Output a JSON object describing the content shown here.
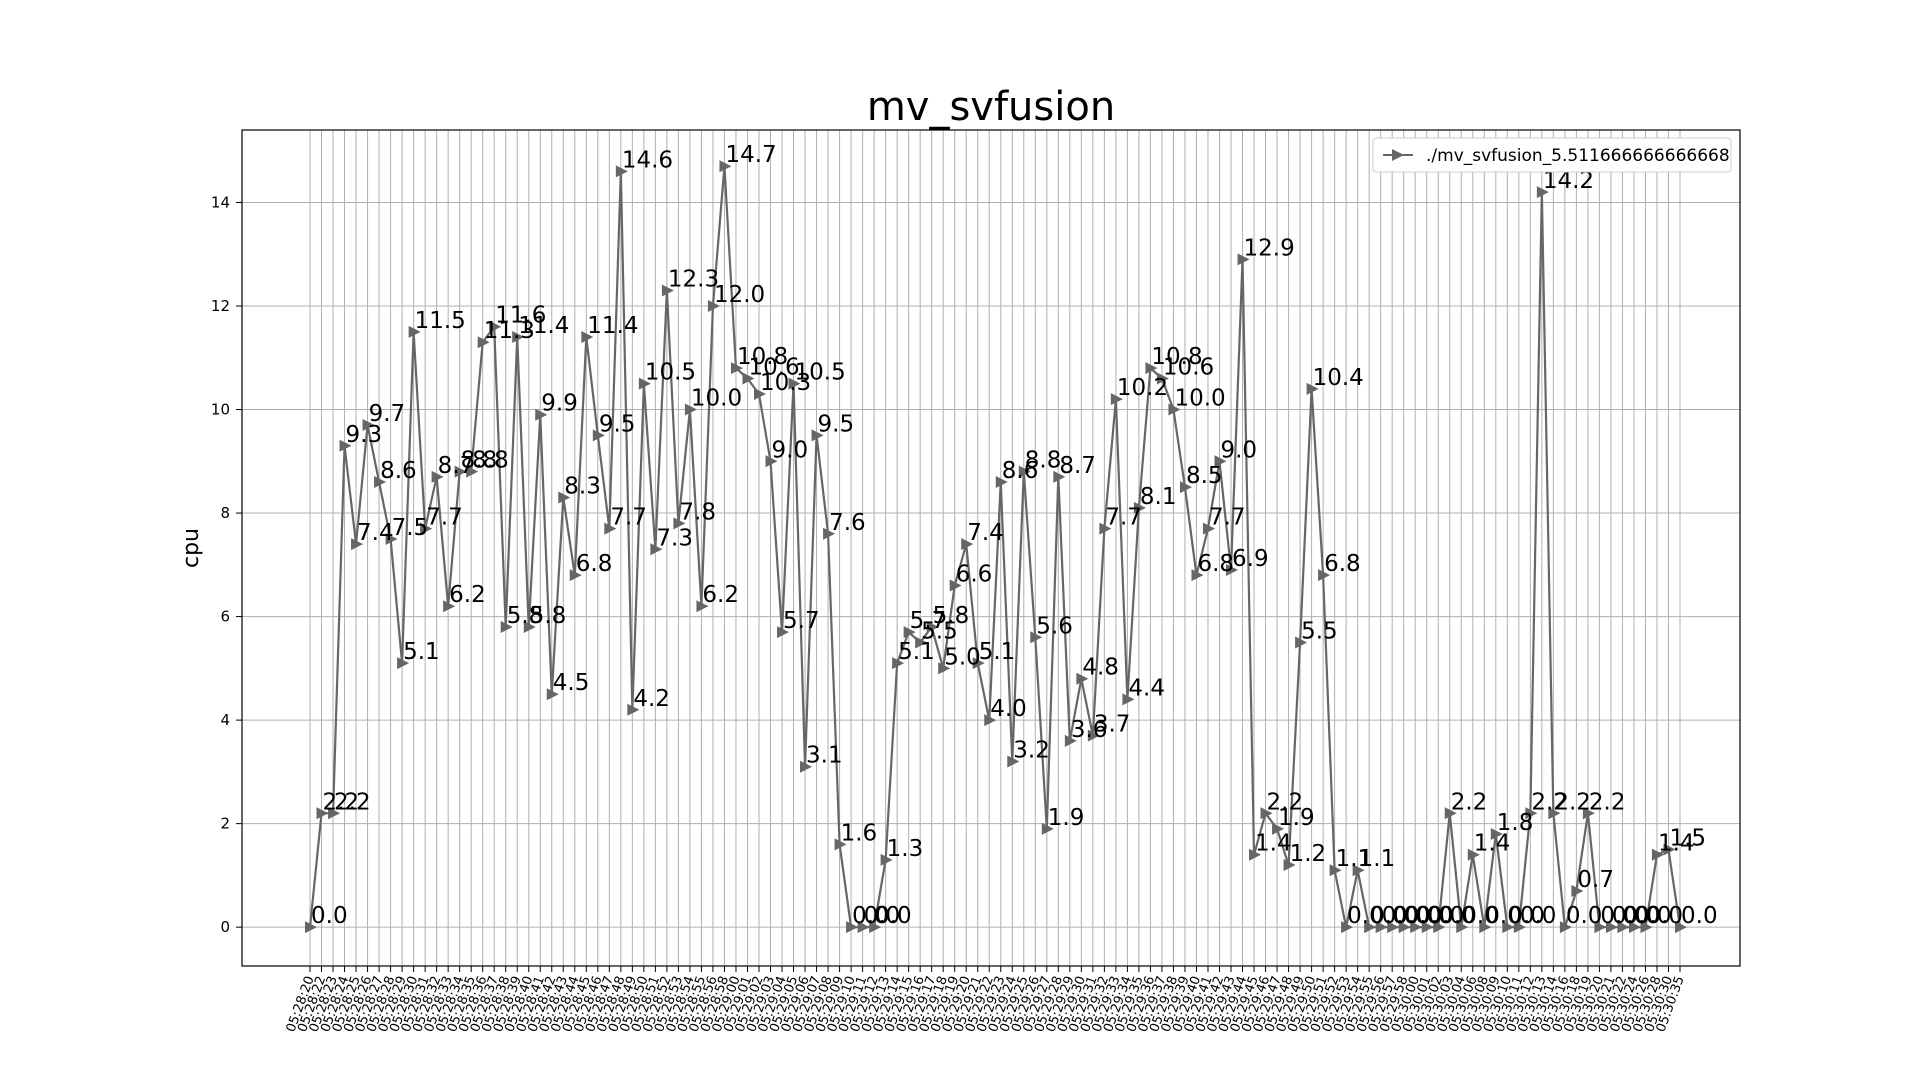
{
  "chart_data": {
    "type": "line",
    "title": "mv_svfusion",
    "ylabel": "cpu",
    "xlabel": "",
    "ylim": [
      -0.75,
      15.4
    ],
    "yticks": [
      0,
      2,
      4,
      6,
      8,
      10,
      12,
      14
    ],
    "grid": true,
    "legend_position": "top-right",
    "marker": "triangle-right",
    "series": [
      {
        "name": "./mv_svfusion_5.511666666666668",
        "color": "#666666",
        "values": [
          0.0,
          2.2,
          2.2,
          9.3,
          7.4,
          9.7,
          8.6,
          7.5,
          5.1,
          11.5,
          7.7,
          8.7,
          6.2,
          8.8,
          8.8,
          11.3,
          11.6,
          5.8,
          11.4,
          5.8,
          9.9,
          4.5,
          8.3,
          6.8,
          11.4,
          9.5,
          7.7,
          14.6,
          4.2,
          10.5,
          7.3,
          12.3,
          7.8,
          10.0,
          6.2,
          12.0,
          14.7,
          10.8,
          10.6,
          10.3,
          9.0,
          5.7,
          10.5,
          3.1,
          9.5,
          7.6,
          1.6,
          0.0,
          0.0,
          0.0,
          1.3,
          5.1,
          5.7,
          5.5,
          5.8,
          5.0,
          6.6,
          7.4,
          5.1,
          4.0,
          8.6,
          3.2,
          8.8,
          5.6,
          1.9,
          8.7,
          3.6,
          4.8,
          3.7,
          7.7,
          10.2,
          4.4,
          8.1,
          10.8,
          10.6,
          10.0,
          8.5,
          6.8,
          7.7,
          9.0,
          6.9,
          12.9,
          1.4,
          2.2,
          1.9,
          1.2,
          5.5,
          10.4,
          6.8,
          1.1,
          0.0,
          1.1,
          0.0,
          0.0,
          0.0,
          0.0,
          0.0,
          0.0,
          0.0,
          2.2,
          0.0,
          1.4,
          0.0,
          1.8,
          0.0,
          0.0,
          2.2,
          14.2,
          2.2,
          0.0,
          0.7,
          2.2,
          0.0,
          0.0,
          0.0,
          0.0,
          0.0,
          1.4,
          1.5,
          0.0
        ],
        "labels": [
          "0.0",
          "2.2",
          "2.2",
          "9.3",
          "7.4",
          "9.7",
          "8.6",
          "7.5",
          "5.1",
          "11.5",
          "7.7",
          "8.7",
          "6.2",
          "8.8",
          "8.8",
          "11.3",
          "11.6",
          "5.8",
          "11.4",
          "5.8",
          "9.9",
          "4.5",
          "8.3",
          "6.8",
          "11.4",
          "9.5",
          "7.7",
          "14.6",
          "4.2",
          "10.5",
          "7.3",
          "12.3",
          "7.8",
          "10.0",
          "6.2",
          "12.0",
          "14.7",
          "10.8",
          "10.6",
          "10.3",
          "9.0",
          "5.7",
          "10.5",
          "3.1",
          "9.5",
          "7.6",
          "1.6",
          "0.0",
          "0.0",
          "0.0",
          "1.3",
          "5.1",
          "5.7",
          "5.5",
          "5.8",
          "5.0",
          "6.6",
          "7.4",
          "5.1",
          "4.0",
          "8.6",
          "3.2",
          "8.8",
          "5.6",
          "1.9",
          "8.7",
          "3.6",
          "4.8",
          "3.7",
          "7.7",
          "10.2",
          "4.4",
          "8.1",
          "10.8",
          "10.6",
          "10.0",
          "8.5",
          "6.8",
          "7.7",
          "9.0",
          "6.9",
          "12.9",
          "1.4",
          "2.2",
          "1.9",
          "1.2",
          "5.5",
          "10.4",
          "6.8",
          "1.1",
          "0.0",
          "1.1",
          "0.0",
          "0.0",
          "0.0",
          "0.0",
          "0.0",
          "0.0",
          "0.0",
          "2.2",
          "0.0",
          "1.4",
          "0.0",
          "1.8",
          "0.0",
          "0.0",
          "2.2",
          "14.2",
          "2.2",
          "0.0",
          "0.7",
          "2.2",
          "0.0",
          "0.0",
          "0.0",
          "0.0",
          "0.0",
          "1.4",
          "1.5",
          "0.0"
        ]
      }
    ],
    "x": [
      "05:28:20",
      "05:28:22",
      "05:28:23",
      "05:28:24",
      "05:28:25",
      "05:28:26",
      "05:28:27",
      "05:28:28",
      "05:28:29",
      "05:28:30",
      "05:28:31",
      "05:28:32",
      "05:28:33",
      "05:28:34",
      "05:28:35",
      "05:28:36",
      "05:28:37",
      "05:28:38",
      "05:28:39",
      "05:28:40",
      "05:28:41",
      "05:28:42",
      "05:28:43",
      "05:28:44",
      "05:28:45",
      "05:28:46",
      "05:28:47",
      "05:28:48",
      "05:28:49",
      "05:28:50",
      "05:28:51",
      "05:28:52",
      "05:28:53",
      "05:28:54",
      "05:28:55",
      "05:28:56",
      "05:28:58",
      "05:29:00",
      "05:29:01",
      "05:29:02",
      "05:29:03",
      "05:29:04",
      "05:29:05",
      "05:29:06",
      "05:29:07",
      "05:29:08",
      "05:29:09",
      "05:29:10",
      "05:29:11",
      "05:29:12",
      "05:29:13",
      "05:29:14",
      "05:29:15",
      "05:29:16",
      "05:29:17",
      "05:29:18",
      "05:29:19",
      "05:29:20",
      "05:29:21",
      "05:29:22",
      "05:29:23",
      "05:29:24",
      "05:29:25",
      "05:29:26",
      "05:29:27",
      "05:29:28",
      "05:29:29",
      "05:29:30",
      "05:29:31",
      "05:29:32",
      "05:29:33",
      "05:29:34",
      "05:29:35",
      "05:29:36",
      "05:29:37",
      "05:29:38",
      "05:29:39",
      "05:29:40",
      "05:29:41",
      "05:29:42",
      "05:29:43",
      "05:29:44",
      "05:29:45",
      "05:29:46",
      "05:29:47",
      "05:29:48",
      "05:29:49",
      "05:29:50",
      "05:29:51",
      "05:29:52",
      "05:29:53",
      "05:29:54",
      "05:29:55",
      "05:29:56",
      "05:29:57",
      "05:29:58",
      "05:30:00",
      "05:30:01",
      "05:30:02",
      "05:30:03",
      "05:30:04",
      "05:30:06",
      "05:30:08",
      "05:30:09",
      "05:30:10",
      "05:30:11",
      "05:30:12",
      "05:30:13",
      "05:30:14",
      "05:30:16",
      "05:30:18",
      "05:30:19",
      "05:30:20",
      "05:30:21",
      "05:30:22",
      "05:30:24",
      "05:30:26",
      "05:30:28",
      "05:30:30",
      "05:30:35"
    ]
  }
}
